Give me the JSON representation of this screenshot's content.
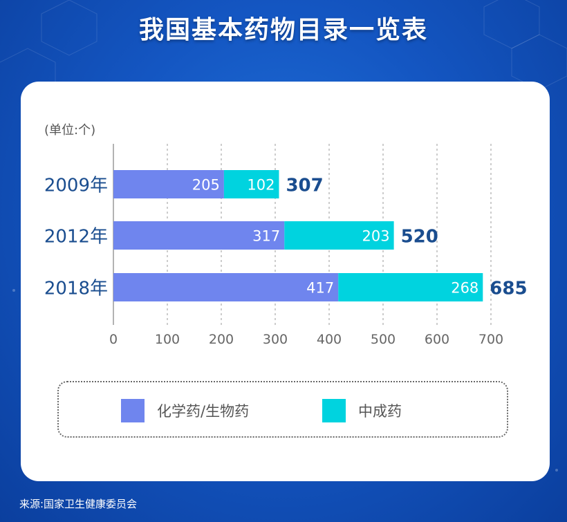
{
  "title": "我国基本药物目录一览表",
  "unit": "(单位:个)",
  "source": "来源:国家卫生健康委员会",
  "colors": {
    "chemical": "#6f85ee",
    "chinese": "#00d3df",
    "category_text": "#1a4d8f",
    "total_text": "#1a4d8f"
  },
  "legend": [
    {
      "label": "化学药/生物药",
      "color": "#6f85ee"
    },
    {
      "label": "中成药",
      "color": "#00d3df"
    }
  ],
  "chart_data": {
    "type": "bar",
    "orientation": "horizontal",
    "stacked": true,
    "title": "我国基本药物目录一览表",
    "categories": [
      "2009年",
      "2012年",
      "2018年"
    ],
    "series": [
      {
        "name": "化学药/生物药",
        "values": [
          205,
          317,
          417
        ]
      },
      {
        "name": "中成药",
        "values": [
          102,
          203,
          268
        ]
      }
    ],
    "totals": [
      307,
      520,
      685
    ],
    "xlim": [
      0,
      700
    ],
    "xticks": [
      0,
      100,
      200,
      300,
      400,
      500,
      600,
      700
    ],
    "grid": true,
    "legend_position": "bottom"
  }
}
